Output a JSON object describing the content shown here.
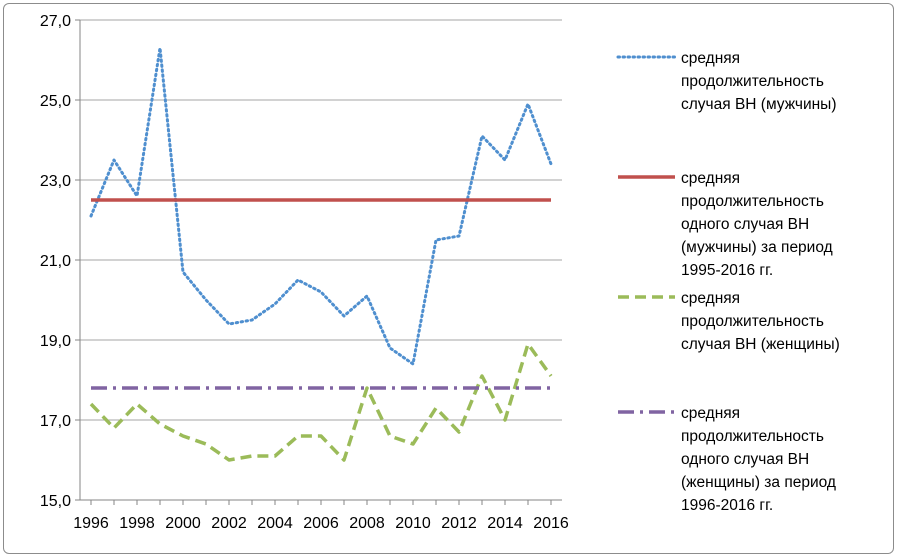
{
  "chart_data": {
    "type": "line",
    "title": "",
    "xlabel": "",
    "ylabel": "",
    "ylim": [
      15,
      27
    ],
    "xlim": [
      1996,
      2016
    ],
    "y_ticks": [
      "15,0",
      "17,0",
      "19,0",
      "21,0",
      "23,0",
      "25,0",
      "27,0"
    ],
    "y_tick_values": [
      15,
      17,
      19,
      21,
      23,
      25,
      27
    ],
    "x_ticks": [
      "1996",
      "1998",
      "2000",
      "2002",
      "2004",
      "2006",
      "2008",
      "2010",
      "2012",
      "2014",
      "2016"
    ],
    "x_tick_values": [
      1996,
      1998,
      2000,
      2002,
      2004,
      2006,
      2008,
      2010,
      2012,
      2014,
      2016
    ],
    "grid": "horizontal",
    "legend_position": "right",
    "x": [
      1996,
      1997,
      1998,
      1999,
      2000,
      2001,
      2002,
      2003,
      2004,
      2005,
      2006,
      2007,
      2008,
      2009,
      2010,
      2011,
      2012,
      2013,
      2014,
      2015,
      2016
    ],
    "series": [
      {
        "name": "средняя продолжительность случая ВН (мужчины)",
        "legend_lines": [
          "средняя",
          "продолжительность",
          "случая ВН (мужчины)"
        ],
        "color": "#4f8fcf",
        "style": "dotted",
        "values": [
          22.1,
          23.5,
          22.6,
          26.3,
          20.7,
          20.0,
          19.4,
          19.5,
          19.9,
          20.5,
          20.2,
          19.6,
          20.1,
          18.8,
          18.4,
          21.5,
          21.6,
          24.1,
          23.5,
          24.9,
          23.4
        ]
      },
      {
        "name": "средняя продолжительность одного случая ВН (мужчины) за период 1995-2016 гг.",
        "legend_lines": [
          "средняя",
          "продолжительность",
          "одного случая ВН",
          "(мужчины) за период",
          "1995-2016 гг."
        ],
        "color": "#c0504d",
        "style": "solid",
        "values": [
          22.5,
          22.5,
          22.5,
          22.5,
          22.5,
          22.5,
          22.5,
          22.5,
          22.5,
          22.5,
          22.5,
          22.5,
          22.5,
          22.5,
          22.5,
          22.5,
          22.5,
          22.5,
          22.5,
          22.5,
          22.5
        ]
      },
      {
        "name": "средняя продолжительность случая ВН (женщины)",
        "legend_lines": [
          "средняя",
          "продолжительность",
          "случая ВН (женщины)"
        ],
        "color": "#9bbb59",
        "style": "dashed",
        "values": [
          17.4,
          16.8,
          17.4,
          16.9,
          16.6,
          16.4,
          16.0,
          16.1,
          16.1,
          16.6,
          16.6,
          16.0,
          17.8,
          16.6,
          16.4,
          17.3,
          16.7,
          18.1,
          17.0,
          18.9,
          18.1
        ]
      },
      {
        "name": "средняя продолжительность одного случая ВН (женщины) за период 1996-2016 гг.",
        "legend_lines": [
          "средняя",
          "продолжительность",
          "одного случая ВН",
          "(женщины) за период",
          "1996-2016 гг."
        ],
        "color": "#8064a2",
        "style": "dash-dot",
        "values": [
          17.8,
          17.8,
          17.8,
          17.8,
          17.8,
          17.8,
          17.8,
          17.8,
          17.8,
          17.8,
          17.8,
          17.8,
          17.8,
          17.8,
          17.8,
          17.8,
          17.8,
          17.8,
          17.8,
          17.8,
          17.8
        ]
      }
    ]
  }
}
